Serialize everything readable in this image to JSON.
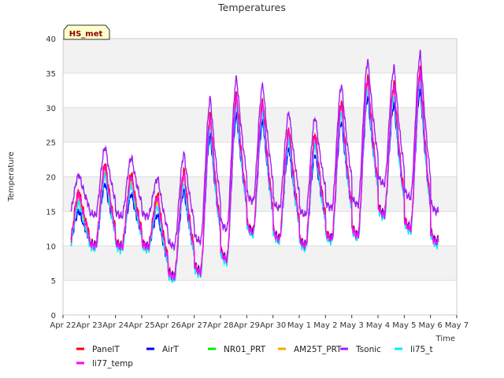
{
  "chart_data": {
    "type": "line",
    "title": "Temperatures",
    "xlabel": "Time",
    "ylabel": "Temperature",
    "badge": "HS_met",
    "ylim": [
      0,
      40
    ],
    "yticks": [
      0,
      5,
      10,
      15,
      20,
      25,
      30,
      35,
      40
    ],
    "xlim": [
      0,
      15
    ],
    "xtick_labels": [
      "Apr 22",
      "Apr 23",
      "Apr 24",
      "Apr 25",
      "Apr 26",
      "Apr 27",
      "Apr 28",
      "Apr 29",
      "Apr 30",
      "May 1",
      "May 2",
      "May 3",
      "May 4",
      "May 5",
      "May 6",
      "May 7"
    ],
    "grid": true,
    "legend_position": "bottom",
    "daily_min_max": [
      {
        "day": "Apr 22",
        "min": 10.0,
        "max": 17.5
      },
      {
        "day": "Apr 23",
        "min": 10.0,
        "max": 21.5
      },
      {
        "day": "Apr 24",
        "min": 9.8,
        "max": 20.0
      },
      {
        "day": "Apr 25",
        "min": 9.8,
        "max": 17.0
      },
      {
        "day": "Apr 26",
        "min": 5.5,
        "max": 20.5
      },
      {
        "day": "Apr 27",
        "min": 6.2,
        "max": 28.5
      },
      {
        "day": "Apr 28",
        "min": 8.0,
        "max": 31.5
      },
      {
        "day": "Apr 29",
        "min": 12.0,
        "max": 30.5
      },
      {
        "day": "Apr 30",
        "min": 11.0,
        "max": 26.5
      },
      {
        "day": "May 1",
        "min": 10.0,
        "max": 25.8
      },
      {
        "day": "May 2",
        "min": 11.0,
        "max": 30.5
      },
      {
        "day": "May 3",
        "min": 11.5,
        "max": 34.0
      },
      {
        "day": "May 4",
        "min": 14.5,
        "max": 33.0
      },
      {
        "day": "May 5",
        "min": 12.5,
        "max": 35.0
      },
      {
        "day": "May 6",
        "min": 10.5,
        "max": 15.0
      }
    ],
    "series": [
      {
        "name": "PanelT",
        "color": "#ff0000",
        "offset_min": 0.3,
        "offset_max": 0.5,
        "end": 14.3
      },
      {
        "name": "AirT",
        "color": "#0000ff",
        "offset_min": 0.2,
        "offset_max": -2.5,
        "end": 14.3
      },
      {
        "name": "NR01_PRT",
        "color": "#00ee00",
        "offset_min": 0.0,
        "offset_max": -0.3,
        "end": 14.3
      },
      {
        "name": "AM25T_PRT",
        "color": "#ffa500",
        "offset_min": -0.2,
        "offset_max": -0.6,
        "end": 14.3
      },
      {
        "name": "Tsonic",
        "color": "#a020f0",
        "offset_min": 4.5,
        "offset_max": 2.8,
        "end": 14.3
      },
      {
        "name": "li75_t",
        "color": "#00eeee",
        "offset_min": -0.4,
        "offset_max": -1.3,
        "end": 14.3
      },
      {
        "name": "li77_temp",
        "color": "#ff00ff",
        "offset_min": 0.0,
        "offset_max": 0.0,
        "end": 14.3
      }
    ]
  }
}
